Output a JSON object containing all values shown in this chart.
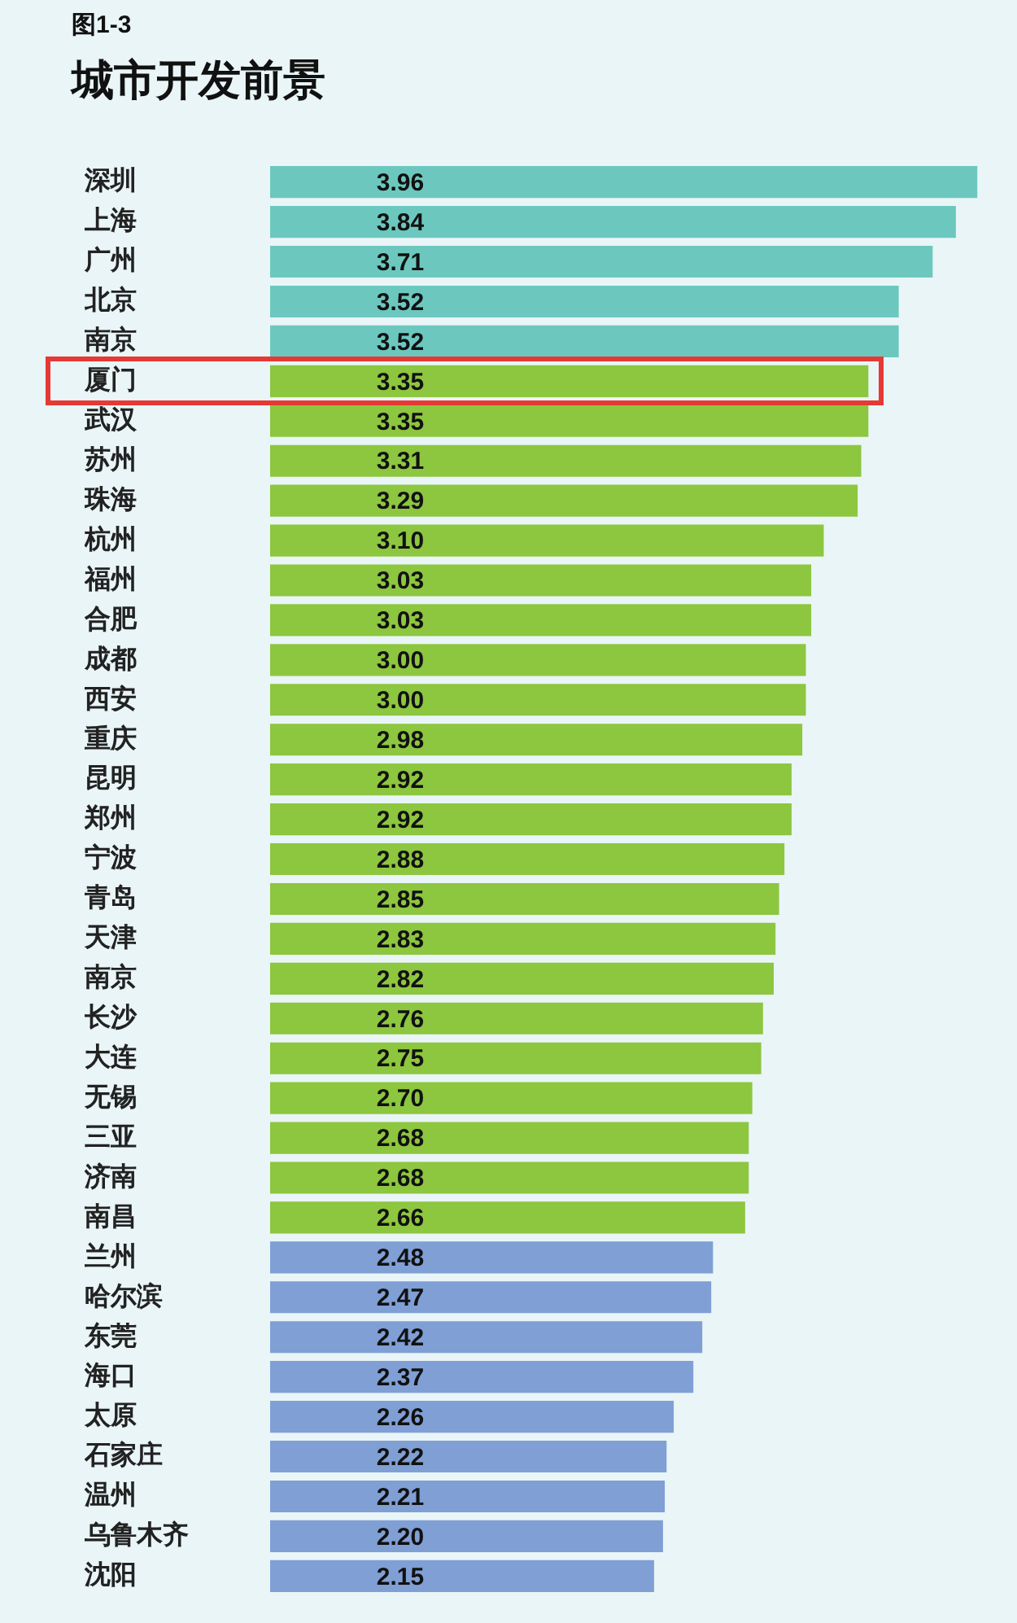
{
  "chart_data": {
    "type": "bar",
    "orientation": "horizontal",
    "title": "城市开发前景",
    "annotations": [
      "图1-3"
    ],
    "categories": [
      "深圳",
      "上海",
      "广州",
      "北京",
      "南京",
      "厦门",
      "武汉",
      "苏州",
      "珠海",
      "杭州",
      "福州",
      "合肥",
      "成都",
      "西安",
      "重庆",
      "昆明",
      "郑州",
      "宁波",
      "青岛",
      "天津",
      "南京",
      "长沙",
      "大连",
      "无锡",
      "三亚",
      "济南",
      "南昌",
      "兰州",
      "哈尔滨",
      "东莞",
      "海口",
      "太原",
      "石家庄",
      "温州",
      "乌鲁木齐",
      "沈阳"
    ],
    "values": [
      3.96,
      3.84,
      3.71,
      3.52,
      3.52,
      3.35,
      3.35,
      3.31,
      3.29,
      3.1,
      3.03,
      3.03,
      3.0,
      3.0,
      2.98,
      2.92,
      2.92,
      2.88,
      2.85,
      2.83,
      2.82,
      2.76,
      2.75,
      2.7,
      2.68,
      2.68,
      2.66,
      2.48,
      2.47,
      2.42,
      2.37,
      2.26,
      2.22,
      2.21,
      2.2,
      2.15
    ],
    "value_labels": [
      "3.96",
      "3.84",
      "3.71",
      "3.52",
      "3.52",
      "3.35",
      "3.35",
      "3.31",
      "3.29",
      "3.10",
      "3.03",
      "3.03",
      "3.00",
      "3.00",
      "2.98",
      "2.92",
      "2.92",
      "2.88",
      "2.85",
      "2.83",
      "2.82",
      "2.76",
      "2.75",
      "2.70",
      "2.68",
      "2.68",
      "2.66",
      "2.48",
      "2.47",
      "2.42",
      "2.37",
      "2.26",
      "2.22",
      "2.21",
      "2.20",
      "2.15"
    ],
    "colors": [
      "#6cc8bf",
      "#6cc8bf",
      "#6cc8bf",
      "#6cc8bf",
      "#6cc8bf",
      "#8dc63f",
      "#8dc63f",
      "#8dc63f",
      "#8dc63f",
      "#8dc63f",
      "#8dc63f",
      "#8dc63f",
      "#8dc63f",
      "#8dc63f",
      "#8dc63f",
      "#8dc63f",
      "#8dc63f",
      "#8dc63f",
      "#8dc63f",
      "#8dc63f",
      "#8dc63f",
      "#8dc63f",
      "#8dc63f",
      "#8dc63f",
      "#8dc63f",
      "#8dc63f",
      "#8dc63f",
      "#7f9fd5",
      "#7f9fd5",
      "#7f9fd5",
      "#7f9fd5",
      "#7f9fd5",
      "#7f9fd5",
      "#7f9fd5",
      "#7f9fd5",
      "#7f9fd5"
    ],
    "grid": false,
    "legend": false
  }
}
